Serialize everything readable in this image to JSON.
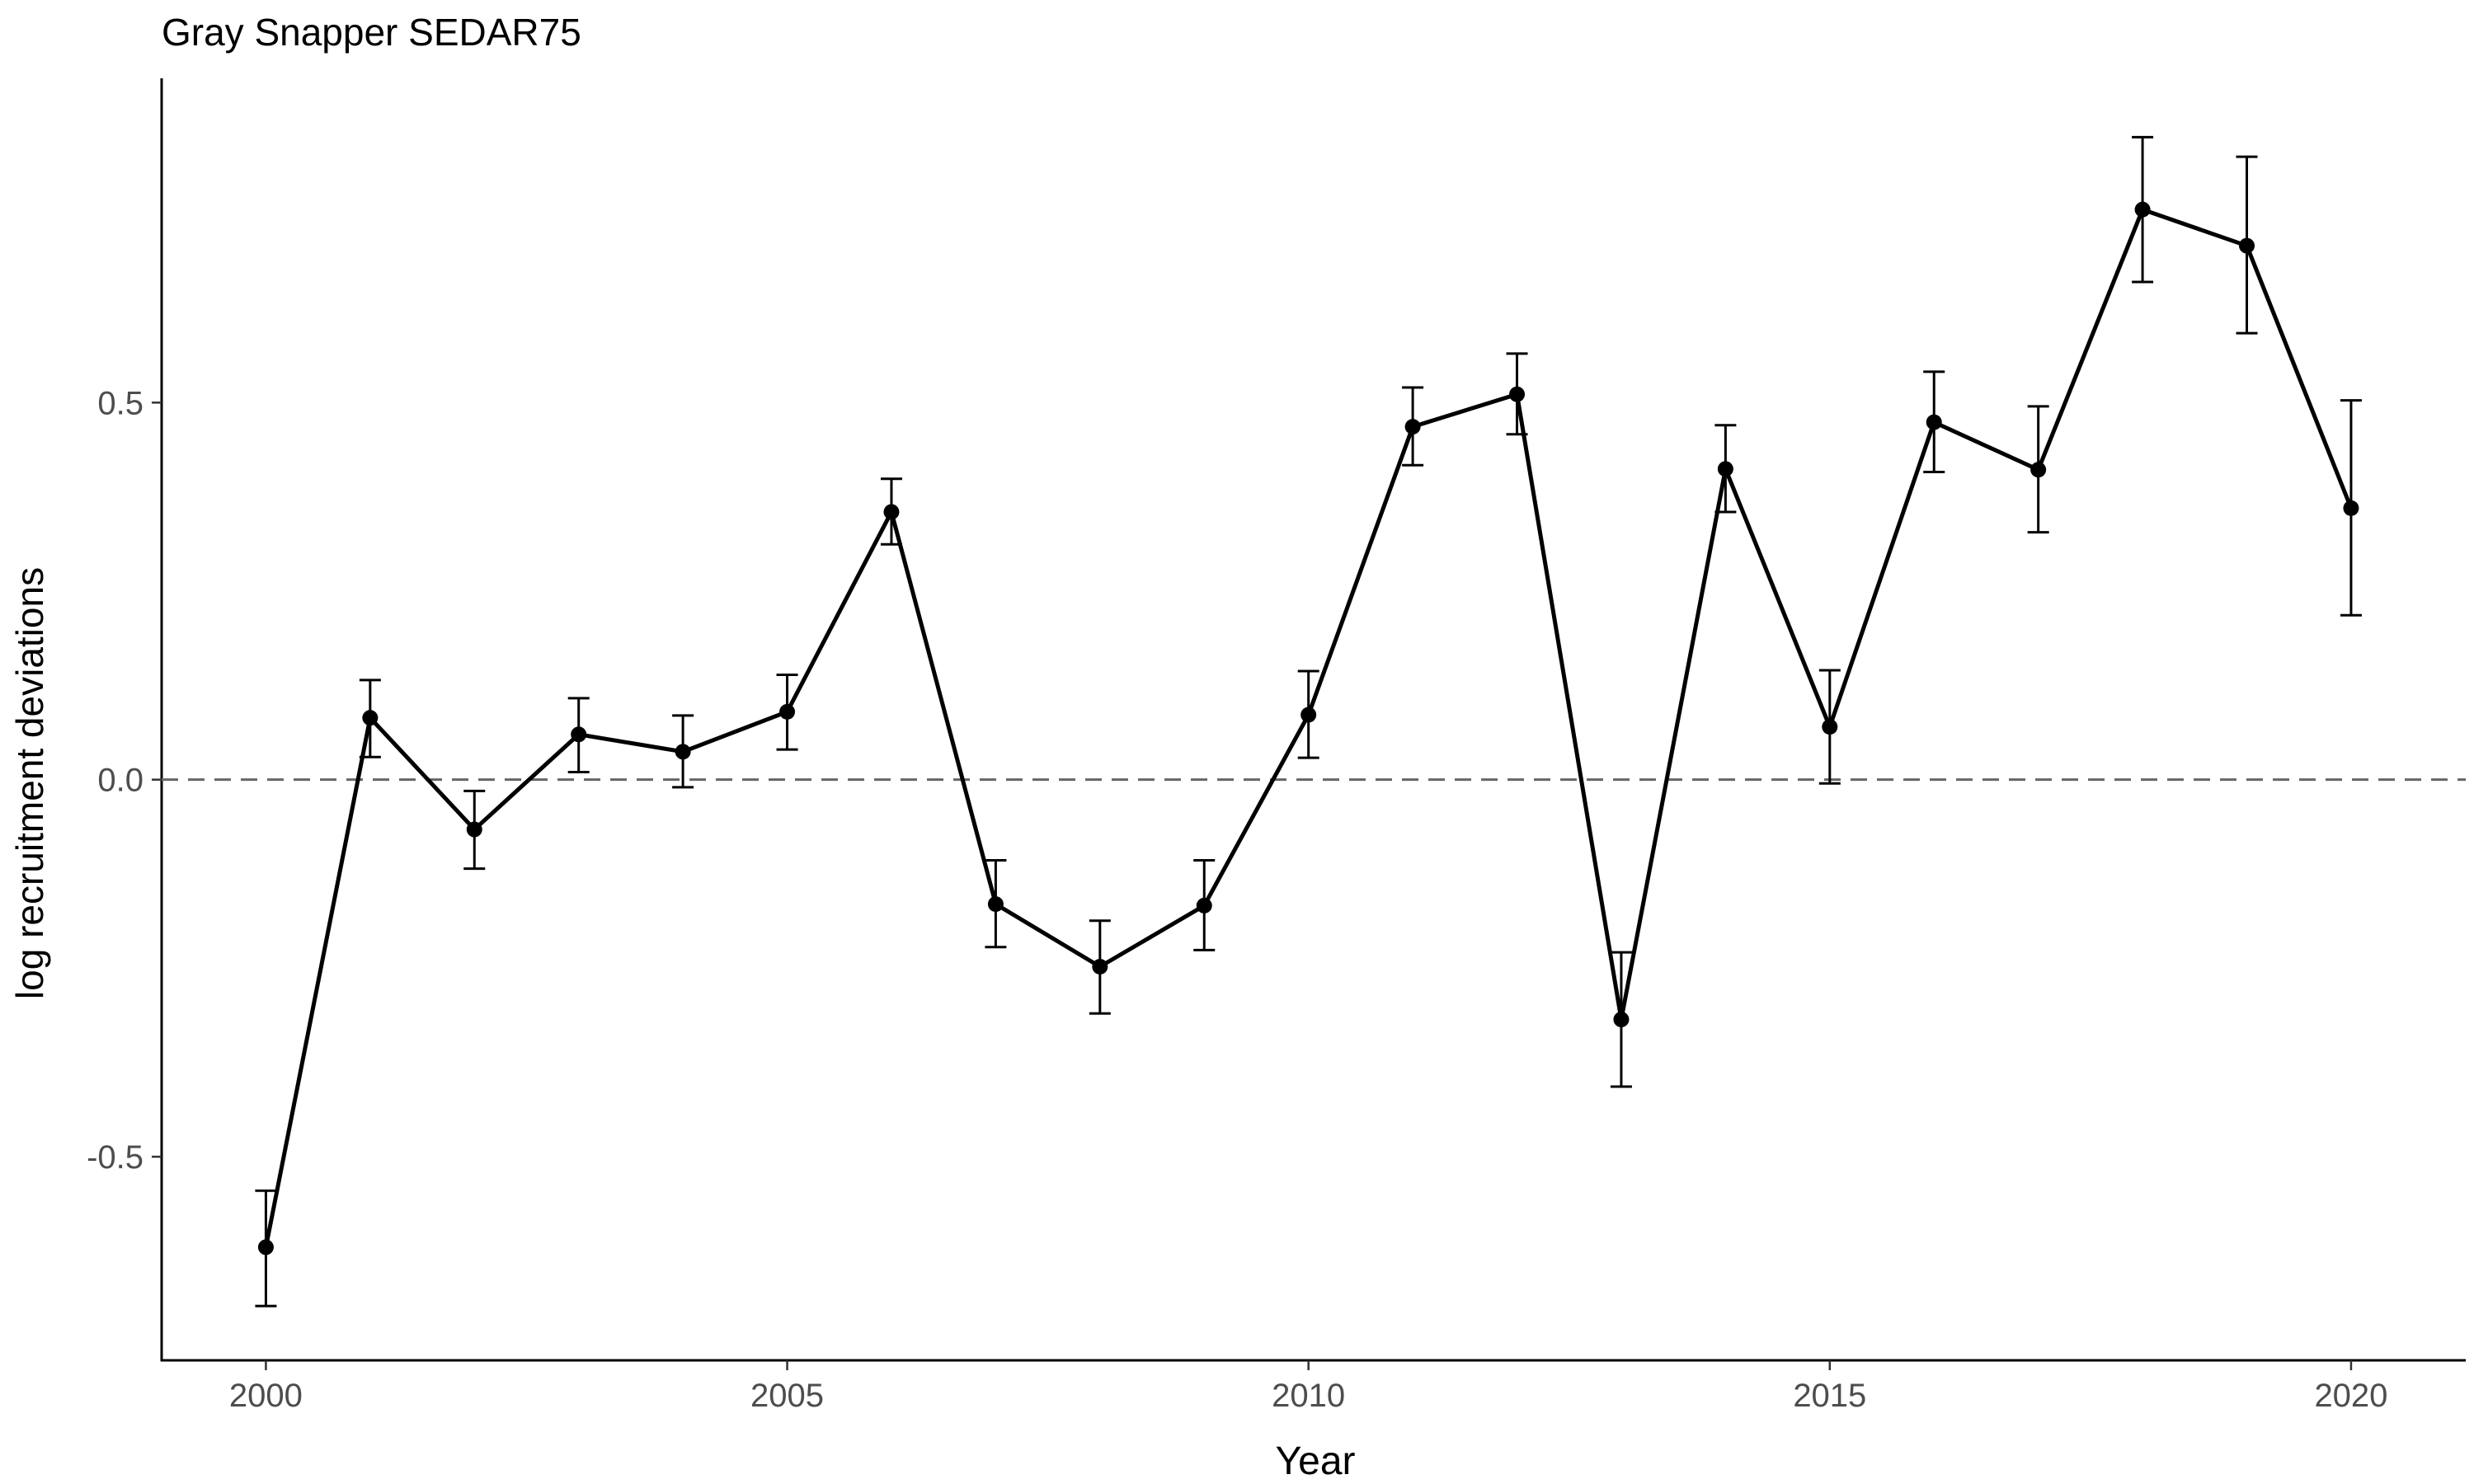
{
  "chart_data": {
    "type": "line",
    "title": "Gray Snapper SEDAR75",
    "xlabel": "Year",
    "ylabel": "log recruitment deviations",
    "xlim": [
      1999,
      2021.1
    ],
    "ylim": [
      -0.77,
      0.93
    ],
    "x_ticks": [
      2000,
      2005,
      2010,
      2015,
      2020
    ],
    "y_ticks": [
      {
        "value": -0.5,
        "label": "-0.5"
      },
      {
        "value": 0.0,
        "label": "0.0"
      },
      {
        "value": 0.5,
        "label": "0.5"
      }
    ],
    "reference_line": {
      "y": 0.0,
      "style": "dashed",
      "color": "#666666"
    },
    "grid": false,
    "series": [
      {
        "color": "#000000",
        "points": [
          {
            "x": 2000,
            "y": -0.62,
            "lo": -0.698,
            "hi": -0.545
          },
          {
            "x": 2001,
            "y": 0.082,
            "lo": 0.03,
            "hi": 0.132
          },
          {
            "x": 2002,
            "y": -0.066,
            "lo": -0.118,
            "hi": -0.015
          },
          {
            "x": 2003,
            "y": 0.06,
            "lo": 0.01,
            "hi": 0.108
          },
          {
            "x": 2004,
            "y": 0.037,
            "lo": -0.01,
            "hi": 0.085
          },
          {
            "x": 2005,
            "y": 0.09,
            "lo": 0.04,
            "hi": 0.139
          },
          {
            "x": 2006,
            "y": 0.355,
            "lo": 0.312,
            "hi": 0.399
          },
          {
            "x": 2007,
            "y": -0.165,
            "lo": -0.222,
            "hi": -0.107
          },
          {
            "x": 2008,
            "y": -0.248,
            "lo": -0.31,
            "hi": -0.187
          },
          {
            "x": 2009,
            "y": -0.167,
            "lo": -0.226,
            "hi": -0.107
          },
          {
            "x": 2010,
            "y": 0.086,
            "lo": 0.029,
            "hi": 0.144
          },
          {
            "x": 2011,
            "y": 0.468,
            "lo": 0.417,
            "hi": 0.52
          },
          {
            "x": 2012,
            "y": 0.511,
            "lo": 0.458,
            "hi": 0.565
          },
          {
            "x": 2013,
            "y": -0.318,
            "lo": -0.407,
            "hi": -0.229
          },
          {
            "x": 2014,
            "y": 0.412,
            "lo": 0.355,
            "hi": 0.47
          },
          {
            "x": 2015,
            "y": 0.07,
            "lo": -0.005,
            "hi": 0.145
          },
          {
            "x": 2016,
            "y": 0.474,
            "lo": 0.408,
            "hi": 0.541
          },
          {
            "x": 2017,
            "y": 0.411,
            "lo": 0.328,
            "hi": 0.495
          },
          {
            "x": 2018,
            "y": 0.756,
            "lo": 0.66,
            "hi": 0.852
          },
          {
            "x": 2019,
            "y": 0.708,
            "lo": 0.592,
            "hi": 0.826
          },
          {
            "x": 2020,
            "y": 0.36,
            "lo": 0.218,
            "hi": 0.503
          }
        ]
      }
    ]
  }
}
